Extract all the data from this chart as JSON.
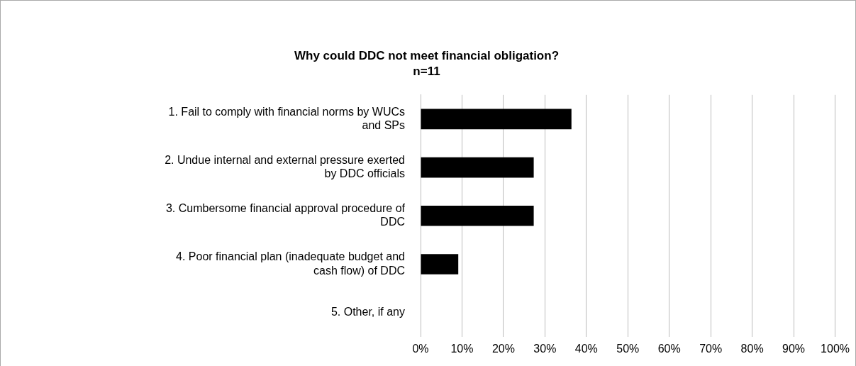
{
  "chart_data": {
    "type": "bar",
    "orientation": "horizontal",
    "title": "Why could DDC not meet financial obligation?",
    "subtitle": "n=11",
    "categories": [
      "1. Fail to comply with financial norms by WUCs and SPs",
      "2. Undue internal and external pressure exerted by DDC officials",
      "3. Cumbersome financial approval procedure of DDC",
      "4. Poor financial plan (inadequate budget and cash flow) of DDC",
      "5. Other, if any"
    ],
    "values": [
      36.4,
      27.3,
      27.3,
      9.1,
      0
    ],
    "color": "#000000",
    "xlim": [
      0,
      100
    ],
    "xticks": [
      {
        "value": 0,
        "label": "0%"
      },
      {
        "value": 10,
        "label": "10%"
      },
      {
        "value": 20,
        "label": "20%"
      },
      {
        "value": 30,
        "label": "30%"
      },
      {
        "value": 40,
        "label": "40%"
      },
      {
        "value": 50,
        "label": "50%"
      },
      {
        "value": 60,
        "label": "60%"
      },
      {
        "value": 70,
        "label": "70%"
      },
      {
        "value": 80,
        "label": "80%"
      },
      {
        "value": 90,
        "label": "90%"
      },
      {
        "value": 100,
        "label": "100%"
      }
    ],
    "grid": "x",
    "legend": false
  }
}
